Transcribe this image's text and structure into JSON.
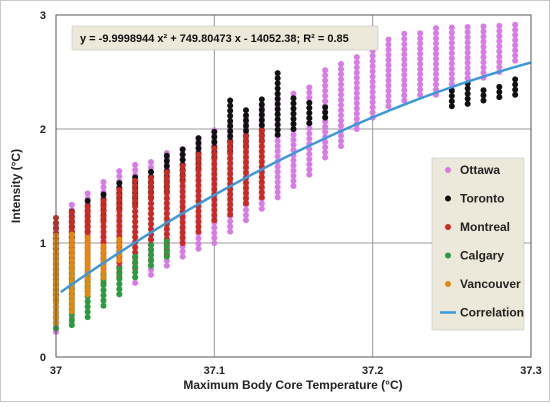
{
  "chart_data": {
    "type": "scatter",
    "title": "",
    "xlabel": "Maximum Body Core Temperature (°C)",
    "ylabel": "Intensity (°C)",
    "xlim": [
      37,
      37.3
    ],
    "ylim": [
      0,
      3
    ],
    "x_ticks": [
      "37",
      "37.1",
      "37.2",
      "37.3"
    ],
    "y_ticks": [
      "0",
      "1",
      "2",
      "3"
    ],
    "grid": true,
    "legend_position": "right",
    "equation": "y = -9.9998944 x² + 749.80473 x - 14052.38;   R² = 0.85",
    "colors": {
      "Ottawa": "#d97ae8",
      "Toronto": "#111111",
      "Montreal": "#cc2a1e",
      "Calgary": "#2a9c3e",
      "Vancouver": "#e08a10",
      "Correlation": "#3a9ad9",
      "legend_bg": "#ece8da"
    },
    "series": [
      {
        "name": "Ottawa",
        "columns": [
          {
            "x": 37.0,
            "min": 0.22,
            "max": 1.2
          },
          {
            "x": 37.01,
            "min": 0.3,
            "max": 1.35
          },
          {
            "x": 37.02,
            "min": 0.4,
            "max": 1.45
          },
          {
            "x": 37.03,
            "min": 0.5,
            "max": 1.55
          },
          {
            "x": 37.04,
            "min": 0.55,
            "max": 1.65
          },
          {
            "x": 37.05,
            "min": 0.65,
            "max": 1.7
          },
          {
            "x": 37.06,
            "min": 0.72,
            "max": 1.72
          },
          {
            "x": 37.07,
            "min": 0.8,
            "max": 1.8
          },
          {
            "x": 37.08,
            "min": 0.88,
            "max": 1.85
          },
          {
            "x": 37.09,
            "min": 0.95,
            "max": 1.9
          },
          {
            "x": 37.1,
            "min": 1.0,
            "max": 2.0
          },
          {
            "x": 37.11,
            "min": 1.1,
            "max": 2.05
          },
          {
            "x": 37.12,
            "min": 1.2,
            "max": 2.1
          },
          {
            "x": 37.13,
            "min": 1.3,
            "max": 2.2
          },
          {
            "x": 37.14,
            "min": 1.4,
            "max": 2.3
          },
          {
            "x": 37.15,
            "min": 1.5,
            "max": 2.35
          },
          {
            "x": 37.16,
            "min": 1.6,
            "max": 2.4
          },
          {
            "x": 37.17,
            "min": 1.75,
            "max": 2.55
          },
          {
            "x": 37.18,
            "min": 1.85,
            "max": 2.6
          },
          {
            "x": 37.19,
            "min": 2.0,
            "max": 2.65
          },
          {
            "x": 37.2,
            "min": 2.1,
            "max": 2.75
          },
          {
            "x": 37.21,
            "min": 2.2,
            "max": 2.8
          },
          {
            "x": 37.22,
            "min": 2.25,
            "max": 2.85
          },
          {
            "x": 37.23,
            "min": 2.3,
            "max": 2.85
          },
          {
            "x": 37.24,
            "min": 2.3,
            "max": 2.9
          },
          {
            "x": 37.25,
            "min": 2.35,
            "max": 2.9
          },
          {
            "x": 37.26,
            "min": 2.4,
            "max": 2.9
          },
          {
            "x": 37.27,
            "min": 2.45,
            "max": 2.9
          },
          {
            "x": 37.28,
            "min": 2.5,
            "max": 2.92
          },
          {
            "x": 37.29,
            "min": 2.6,
            "max": 2.92
          }
        ]
      },
      {
        "name": "Toronto",
        "columns": [
          {
            "x": 37.0,
            "min": 0.95,
            "max": 1.2
          },
          {
            "x": 37.01,
            "min": 1.05,
            "max": 1.3
          },
          {
            "x": 37.02,
            "min": 1.1,
            "max": 1.38
          },
          {
            "x": 37.03,
            "min": 1.2,
            "max": 1.45
          },
          {
            "x": 37.04,
            "min": 1.3,
            "max": 1.55
          },
          {
            "x": 37.05,
            "min": 1.35,
            "max": 1.6
          },
          {
            "x": 37.06,
            "min": 1.4,
            "max": 1.65
          },
          {
            "x": 37.07,
            "min": 1.45,
            "max": 1.8
          },
          {
            "x": 37.08,
            "min": 1.55,
            "max": 1.85
          },
          {
            "x": 37.09,
            "min": 1.65,
            "max": 1.95
          },
          {
            "x": 37.1,
            "min": 1.75,
            "max": 2.0
          },
          {
            "x": 37.11,
            "min": 1.8,
            "max": 2.25
          },
          {
            "x": 37.12,
            "min": 1.85,
            "max": 2.2
          },
          {
            "x": 37.13,
            "min": 1.9,
            "max": 2.3
          },
          {
            "x": 37.14,
            "min": 1.95,
            "max": 2.5
          },
          {
            "x": 37.15,
            "min": 2.0,
            "max": 2.3
          },
          {
            "x": 37.16,
            "min": 2.05,
            "max": 2.25
          },
          {
            "x": 37.17,
            "min": 2.1,
            "max": 2.2
          },
          {
            "x": 37.25,
            "min": 2.2,
            "max": 2.35
          },
          {
            "x": 37.26,
            "min": 2.22,
            "max": 2.4
          },
          {
            "x": 37.27,
            "min": 2.25,
            "max": 2.38
          },
          {
            "x": 37.28,
            "min": 2.28,
            "max": 2.4
          },
          {
            "x": 37.29,
            "min": 2.3,
            "max": 2.45
          }
        ]
      },
      {
        "name": "Montreal",
        "columns": [
          {
            "x": 37.0,
            "min": 0.5,
            "max": 1.22
          },
          {
            "x": 37.01,
            "min": 0.55,
            "max": 1.3
          },
          {
            "x": 37.02,
            "min": 0.6,
            "max": 1.35
          },
          {
            "x": 37.03,
            "min": 0.65,
            "max": 1.4
          },
          {
            "x": 37.04,
            "min": 0.7,
            "max": 1.5
          },
          {
            "x": 37.05,
            "min": 0.78,
            "max": 1.55
          },
          {
            "x": 37.06,
            "min": 0.85,
            "max": 1.6
          },
          {
            "x": 37.07,
            "min": 0.9,
            "max": 1.65
          },
          {
            "x": 37.08,
            "min": 1.0,
            "max": 1.7
          },
          {
            "x": 37.09,
            "min": 1.1,
            "max": 1.8
          },
          {
            "x": 37.1,
            "min": 1.2,
            "max": 1.85
          },
          {
            "x": 37.11,
            "min": 1.25,
            "max": 1.9
          },
          {
            "x": 37.12,
            "min": 1.35,
            "max": 1.95
          },
          {
            "x": 37.13,
            "min": 1.4,
            "max": 2.0
          }
        ]
      },
      {
        "name": "Calgary",
        "columns": [
          {
            "x": 37.0,
            "min": 0.25,
            "max": 0.9
          },
          {
            "x": 37.01,
            "min": 0.28,
            "max": 0.8
          },
          {
            "x": 37.02,
            "min": 0.35,
            "max": 0.75
          },
          {
            "x": 37.03,
            "min": 0.45,
            "max": 0.75
          },
          {
            "x": 37.04,
            "min": 0.55,
            "max": 0.8
          },
          {
            "x": 37.05,
            "min": 0.7,
            "max": 0.9
          },
          {
            "x": 37.06,
            "min": 0.8,
            "max": 1.0
          },
          {
            "x": 37.07,
            "min": 0.88,
            "max": 1.05
          }
        ]
      },
      {
        "name": "Vancouver",
        "columns": [
          {
            "x": 37.0,
            "min": 0.3,
            "max": 1.1
          },
          {
            "x": 37.01,
            "min": 0.4,
            "max": 1.1
          },
          {
            "x": 37.02,
            "min": 0.55,
            "max": 1.05
          },
          {
            "x": 37.03,
            "min": 0.7,
            "max": 1.0
          },
          {
            "x": 37.04,
            "min": 0.85,
            "max": 1.05
          }
        ]
      }
    ],
    "correlation": {
      "name": "Correlation",
      "a": -9.9998944,
      "b": 749.80473,
      "c": -14052.38,
      "x_range": [
        37.003,
        37.3
      ]
    }
  }
}
